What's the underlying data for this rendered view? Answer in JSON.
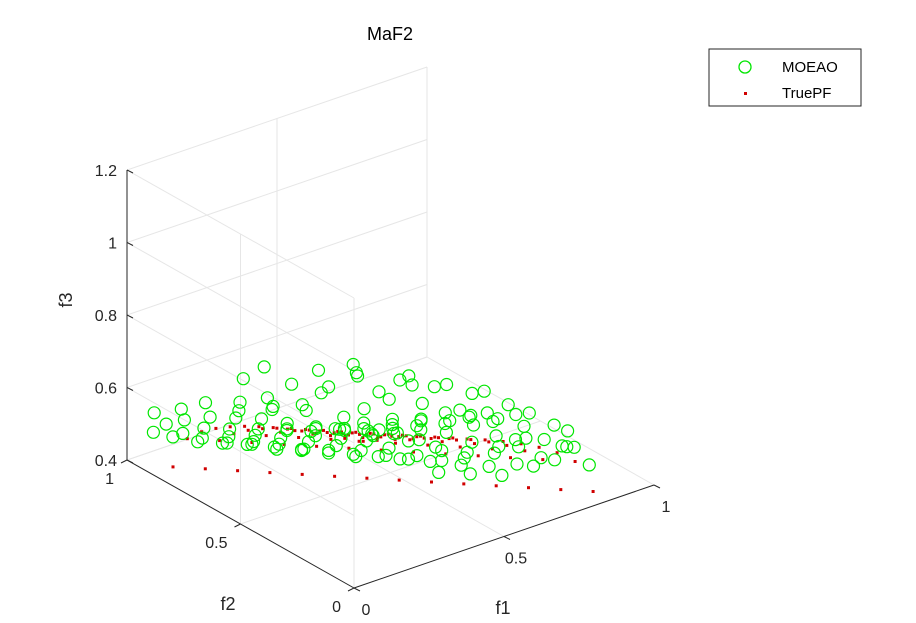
{
  "chart_data": {
    "type": "scatter",
    "projection": "3d",
    "title": "MaF2",
    "xlabel": "f1",
    "ylabel": "f2",
    "zlabel": "f3",
    "xlim": [
      0,
      1
    ],
    "ylim": [
      0,
      1
    ],
    "zlim": [
      0.4,
      1.2
    ],
    "xticks": [
      "0",
      "0.5",
      "1"
    ],
    "yticks": [
      "0",
      "0.5",
      "1"
    ],
    "zticks": [
      "0.4",
      "0.6",
      "0.8",
      "1",
      "1.2"
    ],
    "grid": true,
    "legend_position": "top-right",
    "series": [
      {
        "name": "MOEAO",
        "marker": "circle-open",
        "color": "#00e600",
        "points": [
          [
            0.15,
            0.12,
            0.74
          ],
          [
            0.22,
            0.1,
            0.73
          ],
          [
            0.3,
            0.12,
            0.72
          ],
          [
            0.38,
            0.1,
            0.74
          ],
          [
            0.45,
            0.08,
            0.72
          ],
          [
            0.52,
            0.1,
            0.7
          ],
          [
            0.6,
            0.08,
            0.68
          ],
          [
            0.66,
            0.1,
            0.66
          ],
          [
            0.72,
            0.07,
            0.62
          ],
          [
            0.78,
            0.09,
            0.58
          ],
          [
            0.12,
            0.2,
            0.73
          ],
          [
            0.2,
            0.18,
            0.7
          ],
          [
            0.28,
            0.2,
            0.69
          ],
          [
            0.36,
            0.18,
            0.7
          ],
          [
            0.44,
            0.16,
            0.68
          ],
          [
            0.52,
            0.18,
            0.66
          ],
          [
            0.6,
            0.16,
            0.64
          ],
          [
            0.68,
            0.15,
            0.6
          ],
          [
            0.74,
            0.14,
            0.55
          ],
          [
            0.8,
            0.12,
            0.52
          ],
          [
            0.1,
            0.3,
            0.71
          ],
          [
            0.18,
            0.28,
            0.69
          ],
          [
            0.26,
            0.3,
            0.66
          ],
          [
            0.34,
            0.28,
            0.67
          ],
          [
            0.42,
            0.26,
            0.65
          ],
          [
            0.5,
            0.26,
            0.62
          ],
          [
            0.58,
            0.24,
            0.6
          ],
          [
            0.64,
            0.22,
            0.56
          ],
          [
            0.7,
            0.2,
            0.52
          ],
          [
            0.76,
            0.18,
            0.48
          ],
          [
            0.08,
            0.4,
            0.69
          ],
          [
            0.16,
            0.38,
            0.66
          ],
          [
            0.24,
            0.4,
            0.63
          ],
          [
            0.32,
            0.38,
            0.63
          ],
          [
            0.4,
            0.36,
            0.61
          ],
          [
            0.48,
            0.34,
            0.58
          ],
          [
            0.55,
            0.32,
            0.56
          ],
          [
            0.62,
            0.3,
            0.52
          ],
          [
            0.68,
            0.28,
            0.48
          ],
          [
            0.74,
            0.26,
            0.44
          ],
          [
            0.07,
            0.5,
            0.67
          ],
          [
            0.14,
            0.48,
            0.63
          ],
          [
            0.22,
            0.48,
            0.6
          ],
          [
            0.3,
            0.46,
            0.59
          ],
          [
            0.38,
            0.44,
            0.57
          ],
          [
            0.45,
            0.42,
            0.55
          ],
          [
            0.52,
            0.4,
            0.52
          ],
          [
            0.58,
            0.38,
            0.48
          ],
          [
            0.64,
            0.36,
            0.45
          ],
          [
            0.7,
            0.33,
            0.42
          ],
          [
            0.06,
            0.6,
            0.64
          ],
          [
            0.12,
            0.58,
            0.6
          ],
          [
            0.2,
            0.56,
            0.58
          ],
          [
            0.28,
            0.54,
            0.55
          ],
          [
            0.35,
            0.52,
            0.53
          ],
          [
            0.42,
            0.5,
            0.51
          ],
          [
            0.48,
            0.48,
            0.48
          ],
          [
            0.55,
            0.45,
            0.45
          ],
          [
            0.61,
            0.42,
            0.43
          ],
          [
            0.66,
            0.4,
            0.41
          ],
          [
            0.05,
            0.7,
            0.61
          ],
          [
            0.1,
            0.68,
            0.57
          ],
          [
            0.17,
            0.66,
            0.54
          ],
          [
            0.24,
            0.64,
            0.52
          ],
          [
            0.31,
            0.61,
            0.5
          ],
          [
            0.38,
            0.58,
            0.48
          ],
          [
            0.44,
            0.55,
            0.46
          ],
          [
            0.5,
            0.52,
            0.44
          ],
          [
            0.56,
            0.5,
            0.42
          ],
          [
            0.61,
            0.47,
            0.41
          ],
          [
            0.04,
            0.8,
            0.57
          ],
          [
            0.09,
            0.78,
            0.54
          ],
          [
            0.15,
            0.75,
            0.51
          ],
          [
            0.21,
            0.72,
            0.49
          ],
          [
            0.28,
            0.7,
            0.47
          ],
          [
            0.34,
            0.67,
            0.45
          ],
          [
            0.4,
            0.64,
            0.44
          ],
          [
            0.46,
            0.6,
            0.42
          ],
          [
            0.52,
            0.58,
            0.41
          ],
          [
            0.57,
            0.55,
            0.4
          ],
          [
            0.04,
            0.88,
            0.53
          ],
          [
            0.08,
            0.86,
            0.5
          ],
          [
            0.13,
            0.84,
            0.48
          ],
          [
            0.19,
            0.81,
            0.46
          ],
          [
            0.25,
            0.78,
            0.45
          ],
          [
            0.31,
            0.75,
            0.43
          ],
          [
            0.37,
            0.72,
            0.42
          ],
          [
            0.43,
            0.68,
            0.41
          ],
          [
            0.49,
            0.65,
            0.4
          ],
          [
            0.05,
            0.95,
            0.48
          ],
          [
            0.1,
            0.93,
            0.46
          ],
          [
            0.16,
            0.9,
            0.44
          ],
          [
            0.22,
            0.87,
            0.43
          ],
          [
            0.28,
            0.84,
            0.42
          ],
          [
            0.34,
            0.8,
            0.41
          ],
          [
            0.4,
            0.76,
            0.4
          ],
          [
            0.18,
            0.35,
            0.78
          ],
          [
            0.25,
            0.32,
            0.81
          ],
          [
            0.3,
            0.4,
            0.79
          ],
          [
            0.38,
            0.3,
            0.76
          ],
          [
            0.44,
            0.34,
            0.74
          ],
          [
            0.14,
            0.46,
            0.76
          ],
          [
            0.1,
            0.62,
            0.73
          ],
          [
            0.2,
            0.66,
            0.72
          ],
          [
            0.48,
            0.28,
            0.72
          ],
          [
            0.56,
            0.22,
            0.7
          ],
          [
            0.62,
            0.14,
            0.68
          ],
          [
            0.84,
            0.14,
            0.5
          ],
          [
            0.86,
            0.1,
            0.46
          ],
          [
            0.82,
            0.2,
            0.45
          ],
          [
            0.78,
            0.24,
            0.43
          ],
          [
            0.72,
            0.3,
            0.4
          ],
          [
            0.66,
            0.36,
            0.4
          ],
          [
            0.6,
            0.42,
            0.4
          ],
          [
            0.26,
            0.5,
            0.75
          ],
          [
            0.36,
            0.46,
            0.72
          ],
          [
            0.08,
            0.76,
            0.62
          ],
          [
            0.06,
            0.84,
            0.58
          ],
          [
            0.03,
            0.92,
            0.55
          ],
          [
            0.12,
            0.54,
            0.7
          ],
          [
            0.33,
            0.58,
            0.64
          ],
          [
            0.42,
            0.4,
            0.66
          ],
          [
            0.5,
            0.36,
            0.64
          ],
          [
            0.58,
            0.3,
            0.62
          ],
          [
            0.66,
            0.26,
            0.58
          ],
          [
            0.72,
            0.24,
            0.52
          ],
          [
            0.18,
            0.74,
            0.6
          ],
          [
            0.26,
            0.7,
            0.58
          ],
          [
            0.34,
            0.66,
            0.56
          ],
          [
            0.42,
            0.6,
            0.54
          ],
          [
            0.5,
            0.55,
            0.5
          ],
          [
            0.56,
            0.5,
            0.47
          ],
          [
            0.62,
            0.46,
            0.45
          ],
          [
            0.68,
            0.4,
            0.44
          ],
          [
            0.74,
            0.34,
            0.46
          ],
          [
            0.8,
            0.3,
            0.48
          ],
          [
            0.86,
            0.22,
            0.47
          ],
          [
            0.2,
            0.22,
            0.76
          ],
          [
            0.28,
            0.26,
            0.77
          ],
          [
            0.36,
            0.22,
            0.78
          ],
          [
            0.46,
            0.2,
            0.76
          ],
          [
            0.54,
            0.14,
            0.74
          ],
          [
            0.1,
            0.36,
            0.75
          ],
          [
            0.06,
            0.44,
            0.72
          ],
          [
            0.04,
            0.56,
            0.68
          ]
        ]
      },
      {
        "name": "TruePF",
        "marker": "point",
        "color": "#d00000",
        "grid_points": true
      }
    ]
  }
}
